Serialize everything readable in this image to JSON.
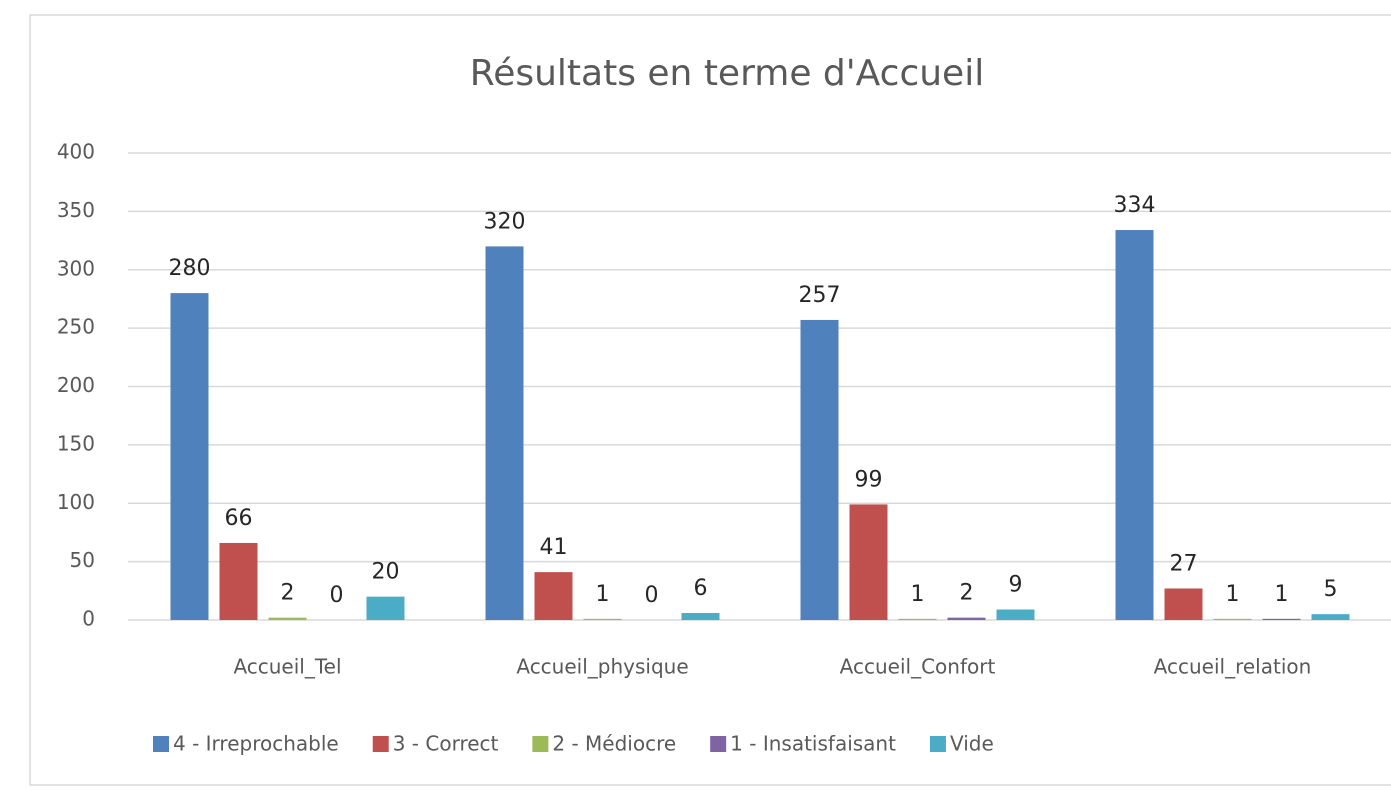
{
  "chart_data": {
    "type": "bar",
    "title": "Résultats en terme d'Accueil",
    "categories": [
      "Accueil_Tel",
      "Accueil_physique",
      "Accueil_Confort",
      "Accueil_relation"
    ],
    "series": [
      {
        "name": "4 - Irreprochable",
        "color": "#4f81bd",
        "values": [
          280,
          320,
          257,
          334
        ]
      },
      {
        "name": "3 - Correct",
        "color": "#c0504d",
        "values": [
          66,
          41,
          99,
          27
        ]
      },
      {
        "name": "2 - Médiocre",
        "color": "#9bbb59",
        "values": [
          2,
          1,
          1,
          1
        ]
      },
      {
        "name": "1 - Insatisfaisant",
        "color": "#8064a2",
        "values": [
          0,
          0,
          2,
          1
        ]
      },
      {
        "name": "Vide",
        "color": "#4bacc6",
        "values": [
          20,
          6,
          9,
          5
        ]
      }
    ],
    "ylim": [
      0,
      400
    ],
    "yticks": [
      0,
      50,
      100,
      150,
      200,
      250,
      300,
      350,
      400
    ],
    "grid": true,
    "legend": "bottom"
  }
}
